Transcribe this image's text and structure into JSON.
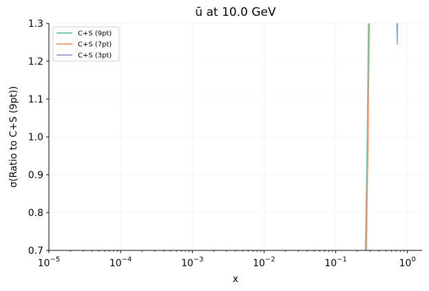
{
  "chart_data": {
    "type": "line",
    "title": "ū at 10.0 GeV",
    "xlabel": "x",
    "ylabel": "σ(Ratio to C+S (9pt))",
    "xscale": "log",
    "xlim": [
      1e-05,
      1.6
    ],
    "ylim": [
      0.7,
      1.3
    ],
    "x_ticks": [
      {
        "value": 1e-05,
        "base": "10",
        "exp": "−5"
      },
      {
        "value": 0.0001,
        "base": "10",
        "exp": "−4"
      },
      {
        "value": 0.001,
        "base": "10",
        "exp": "−3"
      },
      {
        "value": 0.01,
        "base": "10",
        "exp": "−2"
      },
      {
        "value": 0.1,
        "base": "10",
        "exp": "−1"
      },
      {
        "value": 1,
        "base": "10",
        "exp": "0"
      }
    ],
    "y_ticks": [
      "0.7",
      "0.8",
      "0.9",
      "1.0",
      "1.1",
      "1.2",
      "1.3"
    ],
    "grid": true,
    "legend_position": "top-left",
    "series": [
      {
        "name": "C+S (9pt)",
        "color": "#66c2a5",
        "x": [
          0.255,
          0.275,
          0.29
        ],
        "y": [
          0.6,
          1.0,
          1.4
        ]
      },
      {
        "name": "C+S (7pt)",
        "color": "#fc8d62",
        "x": [
          0.262,
          0.282,
          0.297
        ],
        "y": [
          0.6,
          1.0,
          1.4
        ]
      },
      {
        "name": "C+S (3pt)",
        "color": "#8da0cb",
        "x": [
          0.7,
          0.72,
          0.74
        ],
        "y": [
          1.4,
          1.245,
          1.4
        ]
      }
    ]
  }
}
